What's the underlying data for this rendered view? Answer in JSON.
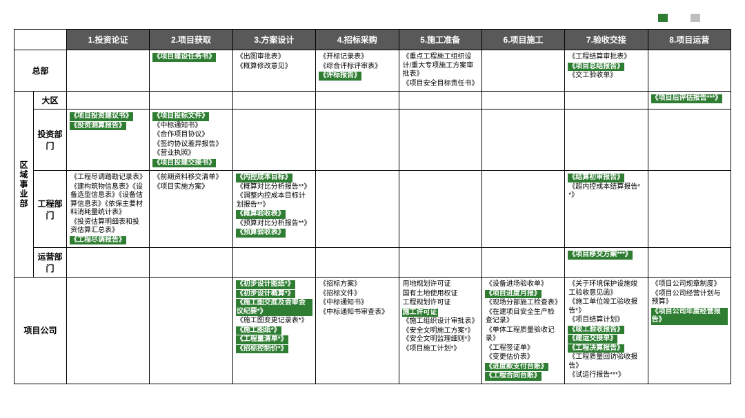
{
  "colors": {
    "highlight": "#2e7d32",
    "neutral": "#bfbfbf",
    "header_bg": "#595959",
    "header_fg": "#ffffff",
    "text": "#000000"
  },
  "legend": [
    {
      "color": "#2e7d32",
      "label": ""
    },
    {
      "color": "#bfbfbf",
      "label": ""
    }
  ],
  "columns": [
    "1.投资论证",
    "2.项目获取",
    "3.方案设计",
    "4.招标采购",
    "5.施工准备",
    "6.项目施工",
    "7.验收交接",
    "8.项目运营"
  ],
  "rowGroups": [
    {
      "key": "hq",
      "label": "总部",
      "vertical": false,
      "subRows": [
        {
          "key": "hq0",
          "label": null
        }
      ]
    },
    {
      "key": "region",
      "label": "区域事业部",
      "vertical": true,
      "subRows": [
        {
          "key": "daqu",
          "label": "大区"
        },
        {
          "key": "touzi",
          "label": "投资部门"
        },
        {
          "key": "gongcheng",
          "label": "工程部门"
        },
        {
          "key": "yunying",
          "label": "运营部门"
        }
      ]
    },
    {
      "key": "proj",
      "label": "项目公司",
      "vertical": false,
      "subRows": [
        {
          "key": "proj0",
          "label": null
        }
      ]
    }
  ],
  "cells": {
    "hq0": {
      "2": [
        {
          "t": "《项目建设任务书》",
          "hl": true
        }
      ],
      "3": [
        {
          "t": "《出图审批表》"
        },
        {
          "t": "《概算修改意见》"
        }
      ],
      "4": [
        {
          "t": "《开标记录表》"
        },
        {
          "t": "《综合评标评审表》"
        },
        {
          "t": "《评标报告》",
          "hl": true
        }
      ],
      "5": [
        {
          "t": "《重点工程施工组织设计/重大专项施工方案审批表》"
        },
        {
          "t": "《项目安全目标责任书》"
        }
      ],
      "7": [
        {
          "t": "《工程结算审批表》"
        },
        {
          "t": "《项目总结报告》",
          "hl": true
        },
        {
          "t": "《交工验收单》"
        }
      ]
    },
    "daqu": {
      "8": [
        {
          "t": "《项目后评估报告***》",
          "hl": true
        }
      ]
    },
    "touzi": {
      "1": [
        {
          "t": "《项目投资建议书》",
          "hl": true
        },
        {
          "t": "《投资测算报告》",
          "hl": true
        }
      ],
      "2": [
        {
          "t": "《项目投标文件》",
          "hl": true
        },
        {
          "t": "《中标通知书》"
        },
        {
          "t": "《合作项目协议》"
        },
        {
          "t": "《签约协议差异报告》"
        },
        {
          "t": "《营业执照》"
        },
        {
          "t": "《项目投建交接书》",
          "hl": true
        }
      ]
    },
    "gongcheng": {
      "1": [
        {
          "t": "《工程尽调踏勘记录表》"
        },
        {
          "t": "《建构筑物信息表》《设备选型信息表》《设备估算信息表》《依保主要材料消耗量统计表》"
        },
        {
          "t": "《投资估算明细表和投资估算汇总表》"
        },
        {
          "t": "《工程尽调报告》",
          "hl": true
        }
      ],
      "2": [
        {
          "t": "《前期资料移交清单》"
        },
        {
          "t": "《项目实施方案》"
        }
      ],
      "3": [
        {
          "t": "《内控成本目标》",
          "hl": true
        },
        {
          "t": "《概算对比分析报告**》"
        },
        {
          "t": "《调整内控成本目标计划报告**》"
        },
        {
          "t": "《概算验收表》",
          "hl": true
        },
        {
          "t": "《预算对比分析报告**》"
        },
        {
          "t": "《预算验收表》",
          "hl": true
        }
      ],
      "7": [
        {
          "t": "《结算初审报告》",
          "hl": true
        },
        {
          "t": "《超内控成本结算报告**》"
        }
      ]
    },
    "yunying": {
      "7": [
        {
          "t": "《项目移交方案***》",
          "hl": true
        }
      ]
    },
    "proj0": {
      "3": [
        {
          "t": "《初步设计图纸*》",
          "hl": true
        },
        {
          "t": "《初步设计概算*》",
          "hl": true
        },
        {
          "t": "《施工图交底及会审会议纪要*》",
          "hl": true
        },
        {
          "t": "《施工图变更记录表*》"
        },
        {
          "t": "《施工图纸*》",
          "hl": true
        },
        {
          "t": "《工程量清单*》",
          "hl": true
        },
        {
          "t": "《招标控制价*》",
          "hl": true
        }
      ],
      "4": [
        {
          "t": "《招标方案》"
        },
        {
          "t": "《招标文件》"
        },
        {
          "t": "《中标通知书》"
        },
        {
          "t": "《中标通知书审查表》"
        }
      ],
      "5": [
        {
          "t": "用地规划许可证"
        },
        {
          "t": "国有土地使用权证"
        },
        {
          "t": "工程规划许可证"
        },
        {
          "t": "施工许可证",
          "hl": true
        },
        {
          "t": "《施工组织设计审批表》"
        },
        {
          "t": "《安全文明施工方案*》《安全文明监理细则*》"
        },
        {
          "t": "《项目施工计划*》"
        }
      ],
      "6": [
        {
          "t": "《设备进场验收单》"
        },
        {
          "t": "《项目进度月报》",
          "hl": true
        },
        {
          "t": "《现场分部施工检查表》"
        },
        {
          "t": "《在建项目安全生产检查记录》"
        },
        {
          "t": "《单体工程质量验收记录》"
        },
        {
          "t": "《工程签证单》"
        },
        {
          "t": "《变更估价表》"
        },
        {
          "t": "《进度款支付台账》",
          "hl": true
        },
        {
          "t": "《工程合同台账》",
          "hl": true
        }
      ],
      "7": [
        {
          "t": "《关于环境保护设施竣工验收意见函》"
        },
        {
          "t": "《施工单位竣工验收报告*》"
        },
        {
          "t": "《项目结算计划》"
        },
        {
          "t": "《竣工验收报告》",
          "hl": true
        },
        {
          "t": "《建运交接单》",
          "hl": true
        },
        {
          "t": "《工程决算报告》",
          "hl": true
        },
        {
          "t": "《工程质量回访验收报告》"
        },
        {
          "t": "《试运行报告***》"
        }
      ],
      "8": [
        {
          "t": "《项目公司规章制度》"
        },
        {
          "t": "《项目公司经营计划与预算》"
        },
        {
          "t": "《项目公司年度经营报告》",
          "hl": true
        }
      ]
    }
  }
}
